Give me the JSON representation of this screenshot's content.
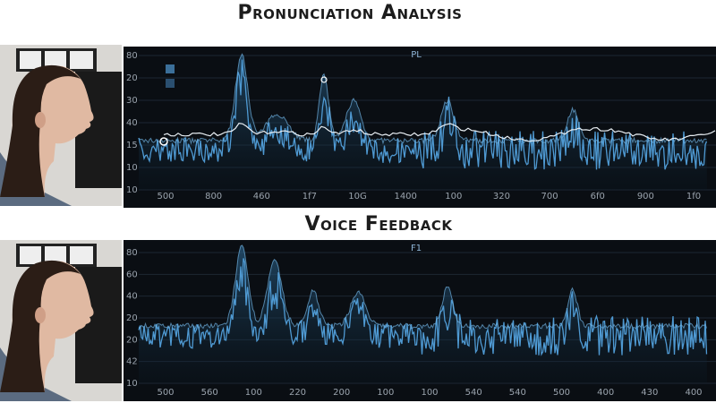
{
  "sections": [
    {
      "title": "Pronunciation Analysis",
      "header_label": "PL",
      "y_labels": [
        "80",
        "20",
        "30",
        "40",
        "15",
        "10",
        "10"
      ],
      "x_labels": [
        "500",
        "800",
        "460",
        "1f7",
        "10G",
        "1400",
        "100",
        "320",
        "700",
        "6f0",
        "900",
        "1f0"
      ]
    },
    {
      "title": "Voice Feedback",
      "header_label": "F1",
      "y_labels": [
        "80",
        "60",
        "40",
        "20",
        "20",
        "42",
        "10"
      ],
      "x_labels": [
        "500",
        "560",
        "100",
        "220",
        "200",
        "100",
        "100",
        "540",
        "540",
        "500",
        "400",
        "430",
        "400"
      ]
    }
  ]
}
